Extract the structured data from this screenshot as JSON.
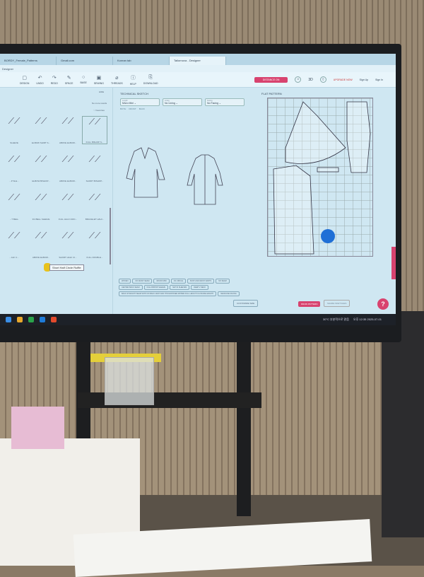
{
  "browser": {
    "tabs": [
      {
        "label": "BORDY_Female_Patterns"
      },
      {
        "label": "Gmail.com"
      },
      {
        "label": "Korean tab"
      },
      {
        "label": "Tailornova - Designer"
      }
    ],
    "app_label": "Designer"
  },
  "toolbar": {
    "items": [
      {
        "label": "DESIGN",
        "icon": "file-icon"
      },
      {
        "label": "UNDO",
        "icon": "undo-icon"
      },
      {
        "label": "REDO",
        "icon": "redo-icon"
      },
      {
        "label": "SPACE",
        "icon": "pen-icon"
      },
      {
        "label": "BASE",
        "icon": "circle-icon"
      },
      {
        "label": "SEWING",
        "icon": "book-icon"
      },
      {
        "label": "THREADS",
        "icon": "thread-icon"
      },
      {
        "label": "HELP",
        "icon": "help-icon"
      },
      {
        "label": "DOWNLOAD",
        "icon": "download-icon"
      }
    ],
    "primary_button": "DISTANCE ON",
    "view_3d": "3D",
    "upgrade": "UPGRADE NOW",
    "sign_up": "Sign Up",
    "sign_in": "Sign In"
  },
  "library": {
    "hide_label": "HIDE",
    "no_more_label": "No more results",
    "favorites_label": "Favorites",
    "rows": [
      [
        "SLEEVE",
        "ELBOW SHIRT S...",
        "ABOVE ELBOW...",
        "FULL BISHOP S..."
      ],
      [
        "...P SLE...",
        "ELBOW BISHOP...",
        "ABOVE ELBOW...",
        "SHORT BISHOP..."
      ],
      [
        "...T BELL",
        "3/4 BELL SLEEVE",
        "FULL HALF CIRC...",
        "BRACELET HALF..."
      ],
      [
        "...ALF C...",
        "ABOVE ELBOW...",
        "SHORT HALF CI...",
        "FULL DOUBLE..."
      ]
    ],
    "tooltip": "Short Half Circle Ruffle"
  },
  "sketch": {
    "title": "TECHNICAL SKETCH",
    "selects": [
      {
        "label": "Length",
        "value": "Micro Mini"
      },
      {
        "label": "Lining",
        "value": "No Lining"
      },
      {
        "label": "Facing",
        "value": "No Facing"
      }
    ],
    "views": [
      "BOTH",
      "FRONT",
      "BACK"
    ],
    "chips": [
      "WOVEN",
      "NO WAIST SEAM",
      "MICRO MINI",
      "3/4 CIRCLE",
      "BUST AND WAIST DARTS",
      "NO SEAM",
      "CENTER BACK SEAM",
      "FULL BISHOP SLEEVE",
      "SET IN SLEEVES",
      "DEEP V NECK",
      "BACK STRAIGHT SEAM WITH NO BACK VENT AND THIN EXPOSED ZIPPER FULL LENGTH CLOSURE LENGTH",
      "NECKLINE FACING"
    ]
  },
  "flat": {
    "title": "FLAT PATTERN",
    "customize": "CUSTOMIZE SIZE",
    "download": "DRAW PATTERN",
    "share": "SHARE SKETCHES",
    "help": "?"
  },
  "taskbar": {
    "weather": "30°C 부분적으로 맑음",
    "time": "오후 12:35",
    "date": "2025-07-01"
  }
}
